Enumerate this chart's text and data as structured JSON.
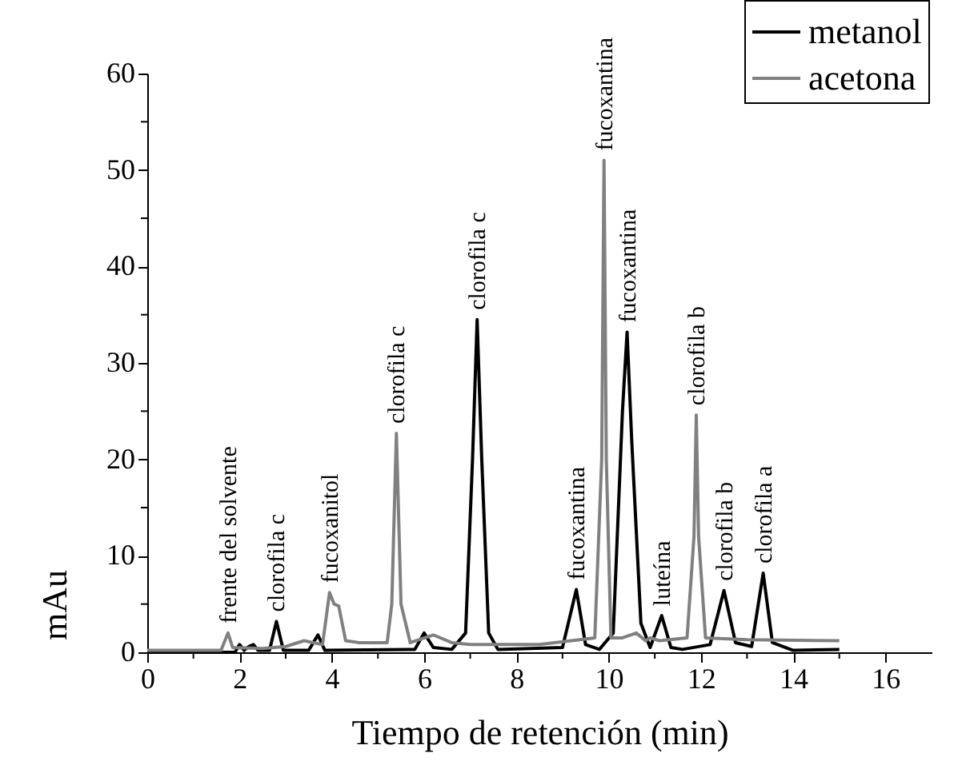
{
  "chart_data": {
    "type": "line",
    "xlabel": "Tiempo de retención (min)",
    "ylabel": "mAu",
    "xlim": [
      0,
      17
    ],
    "ylim": [
      0,
      60
    ],
    "xticks": [
      0,
      {
        "value": 1,
        "label": null
      },
      2,
      {
        "value": 3,
        "label": null
      },
      4,
      {
        "value": 5,
        "label": null
      },
      6,
      {
        "value": 7,
        "label": null
      },
      8,
      {
        "value": 9,
        "label": null
      },
      10,
      {
        "value": 11,
        "label": null
      },
      12,
      {
        "value": 13,
        "label": null
      },
      14,
      {
        "value": 15,
        "label": null
      },
      16
    ],
    "yticks": [
      0,
      {
        "value": 5,
        "label": null
      },
      10,
      {
        "value": 15,
        "label": null
      },
      20,
      {
        "value": 25,
        "label": null
      },
      30,
      {
        "value": 35,
        "label": null
      },
      40,
      {
        "value": 45,
        "label": null
      },
      50,
      {
        "value": 55,
        "label": null
      },
      60
    ],
    "grid": false,
    "legend": "top right",
    "line_style": "solid",
    "marker": "none",
    "series": [
      {
        "name": "metanol",
        "color": "#000000",
        "x": [
          0,
          1.9,
          2.0,
          2.1,
          2.2,
          2.3,
          2.4,
          2.65,
          2.8,
          2.95,
          3.5,
          3.7,
          3.85,
          5.8,
          6.0,
          6.2,
          6.6,
          6.9,
          7.05,
          7.15,
          7.25,
          7.4,
          7.6,
          9.0,
          9.3,
          9.5,
          9.8,
          10.1,
          10.3,
          10.4,
          10.5,
          10.7,
          10.9,
          11.15,
          11.35,
          11.6,
          12.2,
          12.5,
          12.75,
          13.1,
          13.35,
          13.55,
          14.0,
          15.0
        ],
        "values": [
          0,
          0,
          0.8,
          0.2,
          0.6,
          0.8,
          0.2,
          0.2,
          3.2,
          0.2,
          0.2,
          1.8,
          0.2,
          0.3,
          2.0,
          0.5,
          0.3,
          2.0,
          20,
          34.5,
          20,
          2,
          0.3,
          0.5,
          6.5,
          0.8,
          0.3,
          2,
          25,
          33.2,
          22,
          3,
          0.5,
          3.8,
          0.5,
          0.3,
          0.8,
          6.4,
          1.0,
          0.6,
          8.2,
          1.0,
          0.2,
          0.3
        ]
      },
      {
        "name": "acetona",
        "color": "#808080",
        "x": [
          0,
          1.6,
          1.75,
          1.85,
          2.5,
          3.0,
          3.4,
          3.8,
          3.95,
          4.05,
          4.15,
          4.3,
          4.6,
          5.2,
          5.3,
          5.4,
          5.5,
          5.7,
          6.2,
          6.6,
          7.0,
          8.5,
          9.7,
          9.85,
          9.9,
          9.95,
          10.05,
          10.3,
          10.6,
          10.8,
          10.9,
          11.1,
          11.7,
          11.85,
          11.9,
          11.95,
          12.1,
          13,
          15.0
        ],
        "values": [
          0.2,
          0.2,
          2.0,
          0.5,
          0.4,
          0.6,
          1.2,
          0.8,
          6.2,
          5.0,
          4.8,
          1.2,
          1.0,
          1.0,
          5,
          22.7,
          5,
          1.0,
          1.8,
          1.0,
          0.8,
          0.8,
          1.5,
          20,
          51,
          20,
          1.5,
          1.5,
          2.0,
          1.2,
          1.5,
          1.2,
          1.5,
          12,
          24.6,
          12,
          1.5,
          1.3,
          1.2
        ]
      }
    ],
    "annotations": [
      {
        "text": "frente del solvente",
        "x": 1.75,
        "y": 2.0
      },
      {
        "text": "clorofila c",
        "x": 2.8,
        "y": 3.2
      },
      {
        "text": "fucoxanitol",
        "x": 3.95,
        "y": 6.2
      },
      {
        "text": "clorofila c",
        "x": 5.4,
        "y": 22.7
      },
      {
        "text": "clorofila c",
        "x": 7.15,
        "y": 34.5
      },
      {
        "text": "fucoxantina",
        "x": 9.3,
        "y": 6.5
      },
      {
        "text": "fucoxantina",
        "x": 9.9,
        "y": 51
      },
      {
        "text": "fucoxantina",
        "x": 10.4,
        "y": 33.2
      },
      {
        "text": "luteína",
        "x": 11.15,
        "y": 3.8
      },
      {
        "text": "clorofila b",
        "x": 11.9,
        "y": 24.6
      },
      {
        "text": "clorofila b",
        "x": 12.5,
        "y": 6.4
      },
      {
        "text": "clorofila a",
        "x": 13.35,
        "y": 8.2
      }
    ]
  }
}
